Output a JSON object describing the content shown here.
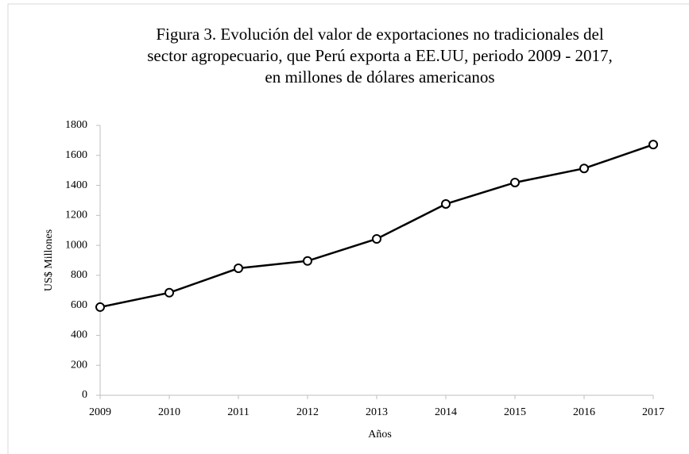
{
  "chart_data": {
    "type": "line",
    "title": [
      "Figura 3. Evolución del valor de exportaciones no tradicionales del",
      "sector agropecuario, que Perú exporta a EE.UU, periodo 2009 - 2017,",
      "en millones de dólares americanos"
    ],
    "x_label": "Años",
    "y_label": "US$ Millones",
    "categories": [
      "2009",
      "2010",
      "2011",
      "2012",
      "2013",
      "2014",
      "2015",
      "2016",
      "2017"
    ],
    "series": [
      {
        "color": "#000000",
        "values": [
          588,
          684,
          847,
          896,
          1043,
          1276,
          1419,
          1513,
          1672
        ]
      }
    ],
    "ylim": [
      0,
      1800
    ],
    "yticks": [
      0,
      200,
      400,
      600,
      800,
      1000,
      1200,
      1400,
      1600,
      1800
    ],
    "grid": false
  }
}
